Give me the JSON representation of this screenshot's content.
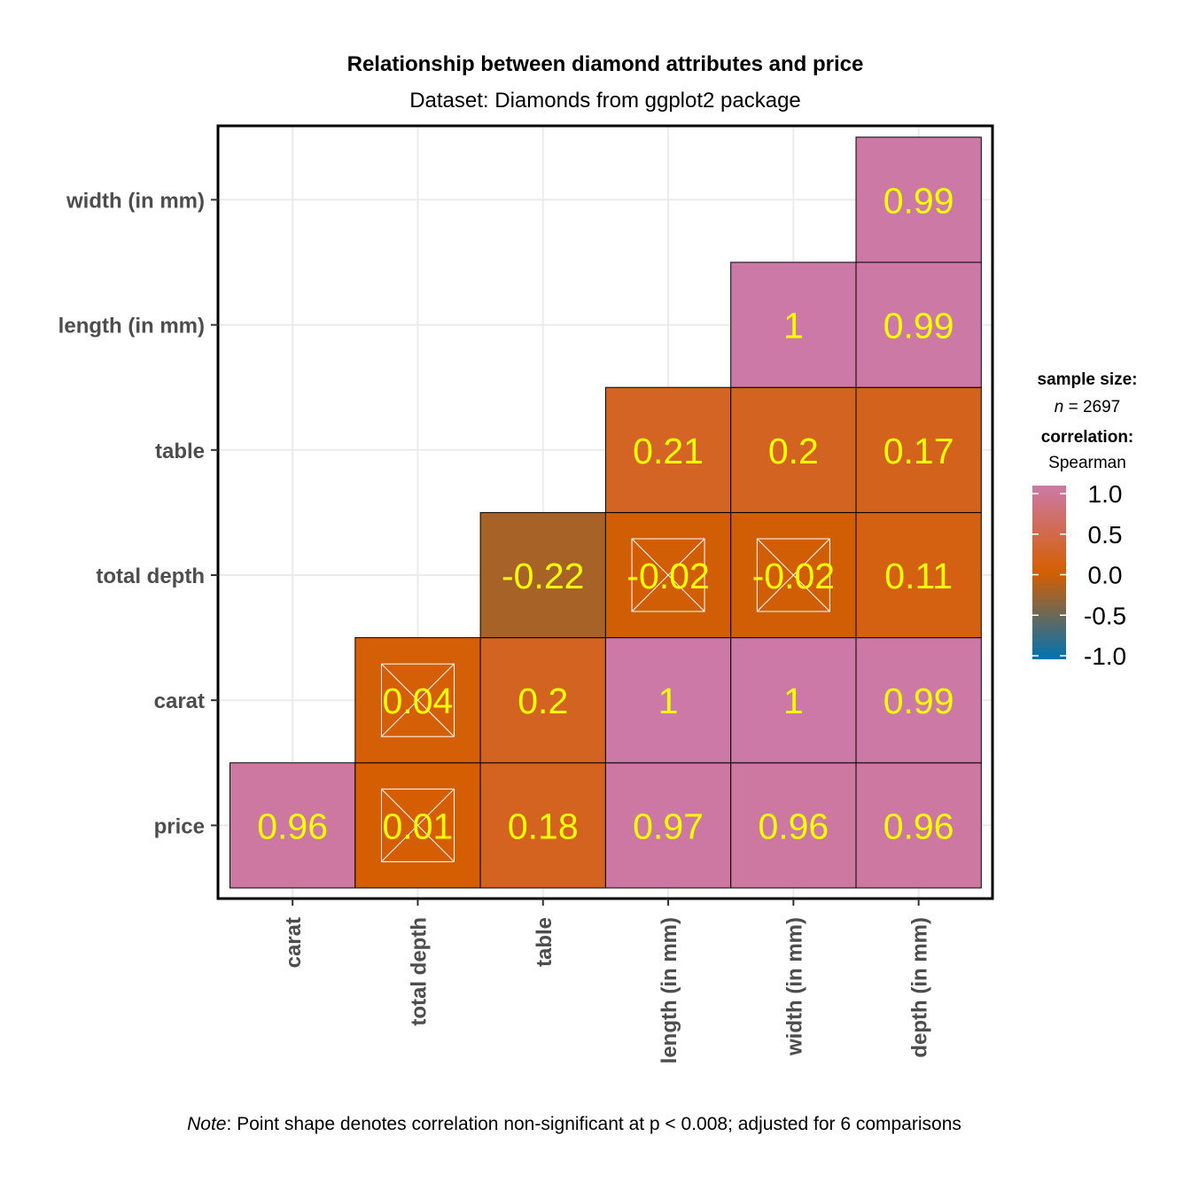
{
  "chart_data": {
    "type": "heatmap",
    "title": "Relationship between diamond attributes and price",
    "subtitle": "Dataset: Diamonds from ggplot2 package",
    "x_categories": [
      "carat",
      "total depth",
      "table",
      "length (in mm)",
      "width (in mm)",
      "depth (in mm)"
    ],
    "y_categories": [
      "price",
      "carat",
      "total depth",
      "table",
      "length (in mm)",
      "width (in mm)"
    ],
    "cells": [
      {
        "x": "carat",
        "y": "price",
        "value": 0.96,
        "label": "0.96",
        "significant": true
      },
      {
        "x": "total depth",
        "y": "price",
        "value": 0.01,
        "label": "0.01",
        "significant": false
      },
      {
        "x": "table",
        "y": "price",
        "value": 0.18,
        "label": "0.18",
        "significant": true
      },
      {
        "x": "length (in mm)",
        "y": "price",
        "value": 0.97,
        "label": "0.97",
        "significant": true
      },
      {
        "x": "width (in mm)",
        "y": "price",
        "value": 0.96,
        "label": "0.96",
        "significant": true
      },
      {
        "x": "depth (in mm)",
        "y": "price",
        "value": 0.96,
        "label": "0.96",
        "significant": true
      },
      {
        "x": "total depth",
        "y": "carat",
        "value": 0.04,
        "label": "0.04",
        "significant": false
      },
      {
        "x": "table",
        "y": "carat",
        "value": 0.2,
        "label": "0.2",
        "significant": true
      },
      {
        "x": "length (in mm)",
        "y": "carat",
        "value": 1,
        "label": "1",
        "significant": true
      },
      {
        "x": "width (in mm)",
        "y": "carat",
        "value": 1,
        "label": "1",
        "significant": true
      },
      {
        "x": "depth (in mm)",
        "y": "carat",
        "value": 0.99,
        "label": "0.99",
        "significant": true
      },
      {
        "x": "table",
        "y": "total depth",
        "value": -0.22,
        "label": "-0.22",
        "significant": true
      },
      {
        "x": "length (in mm)",
        "y": "total depth",
        "value": -0.02,
        "label": "-0.02",
        "significant": false
      },
      {
        "x": "width (in mm)",
        "y": "total depth",
        "value": -0.02,
        "label": "-0.02",
        "significant": false
      },
      {
        "x": "depth (in mm)",
        "y": "total depth",
        "value": 0.11,
        "label": "0.11",
        "significant": true
      },
      {
        "x": "length (in mm)",
        "y": "table",
        "value": 0.21,
        "label": "0.21",
        "significant": true
      },
      {
        "x": "width (in mm)",
        "y": "table",
        "value": 0.2,
        "label": "0.2",
        "significant": true
      },
      {
        "x": "depth (in mm)",
        "y": "table",
        "value": 0.17,
        "label": "0.17",
        "significant": true
      },
      {
        "x": "width (in mm)",
        "y": "length (in mm)",
        "value": 1,
        "label": "1",
        "significant": true
      },
      {
        "x": "depth (in mm)",
        "y": "length (in mm)",
        "value": 0.99,
        "label": "0.99",
        "significant": true
      },
      {
        "x": "depth (in mm)",
        "y": "width (in mm)",
        "value": 0.99,
        "label": "0.99",
        "significant": true
      }
    ],
    "color_scale": {
      "low": -1.0,
      "mid": 0.0,
      "high": 1.0,
      "low_color": "#0072b2",
      "mid_color": "#d55e00",
      "high_color": "#cc79a7"
    },
    "label_color": "#ffff00",
    "legend": {
      "position": "right",
      "sample_size_title": "sample size:",
      "n_label": "n",
      "n_value": "= 2697",
      "correlation_title": "correlation:",
      "method": "Spearman",
      "ticks": [
        "1.0",
        "0.5",
        "0.0",
        "-0.5",
        "-1.0"
      ],
      "tick_values": [
        1.0,
        0.5,
        0.0,
        -0.5,
        -1.0
      ]
    },
    "caption_italic": "Note",
    "caption_text": ": Point shape denotes correlation non-significant at p < 0.008; adjusted for 6 comparisons",
    "grid": true
  }
}
